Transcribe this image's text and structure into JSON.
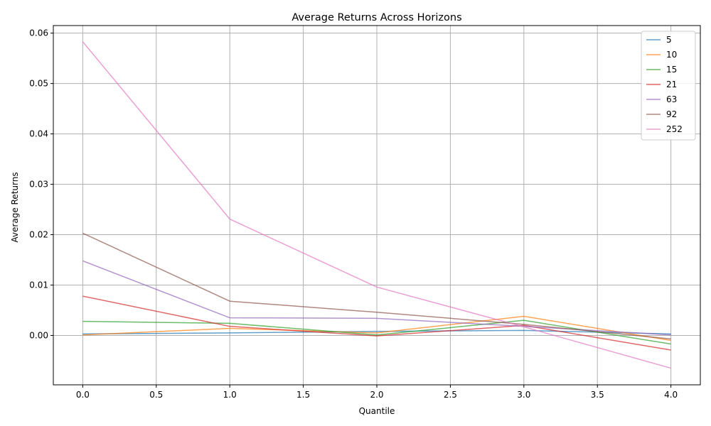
{
  "chart_data": {
    "type": "line",
    "title": "Average Returns Across Horizons",
    "xlabel": "Quantile",
    "ylabel": "Average Returns",
    "x": [
      0,
      1,
      2,
      3,
      4
    ],
    "xlim": [
      -0.2,
      4.2
    ],
    "ylim": [
      -0.0098,
      0.0615
    ],
    "xticks": [
      0.0,
      0.5,
      1.0,
      1.5,
      2.0,
      2.5,
      3.0,
      3.5,
      4.0
    ],
    "xtick_labels": [
      "0.0",
      "0.5",
      "1.0",
      "1.5",
      "2.0",
      "2.5",
      "3.0",
      "3.5",
      "4.0"
    ],
    "yticks": [
      0.0,
      0.01,
      0.02,
      0.03,
      0.04,
      0.05,
      0.06
    ],
    "ytick_labels": [
      "0.00",
      "0.01",
      "0.02",
      "0.03",
      "0.04",
      "0.05",
      "0.06"
    ],
    "grid": true,
    "legend_position": "top-right",
    "series": [
      {
        "name": "5",
        "color": "#1f77b4",
        "values": [
          0.0003,
          0.0005,
          0.0008,
          0.001,
          0.0003
        ]
      },
      {
        "name": "10",
        "color": "#ff7f0e",
        "values": [
          0.0001,
          0.0014,
          0.0005,
          0.0038,
          -0.001
        ]
      },
      {
        "name": "15",
        "color": "#2ca02c",
        "values": [
          0.0028,
          0.0024,
          0.0001,
          0.003,
          -0.0017
        ]
      },
      {
        "name": "21",
        "color": "#d62728",
        "values": [
          0.0078,
          0.0018,
          -0.0001,
          0.002,
          -0.0029
        ]
      },
      {
        "name": "63",
        "color": "#9467bd",
        "values": [
          0.0148,
          0.0035,
          0.0034,
          0.0018,
          0.0001
        ]
      },
      {
        "name": "92",
        "color": "#8c564b",
        "values": [
          0.0203,
          0.0068,
          0.0046,
          0.0022,
          -0.0007
        ]
      },
      {
        "name": "252",
        "color": "#e377c2",
        "values": [
          0.0583,
          0.0231,
          0.0096,
          0.0017,
          -0.0065
        ]
      }
    ]
  }
}
